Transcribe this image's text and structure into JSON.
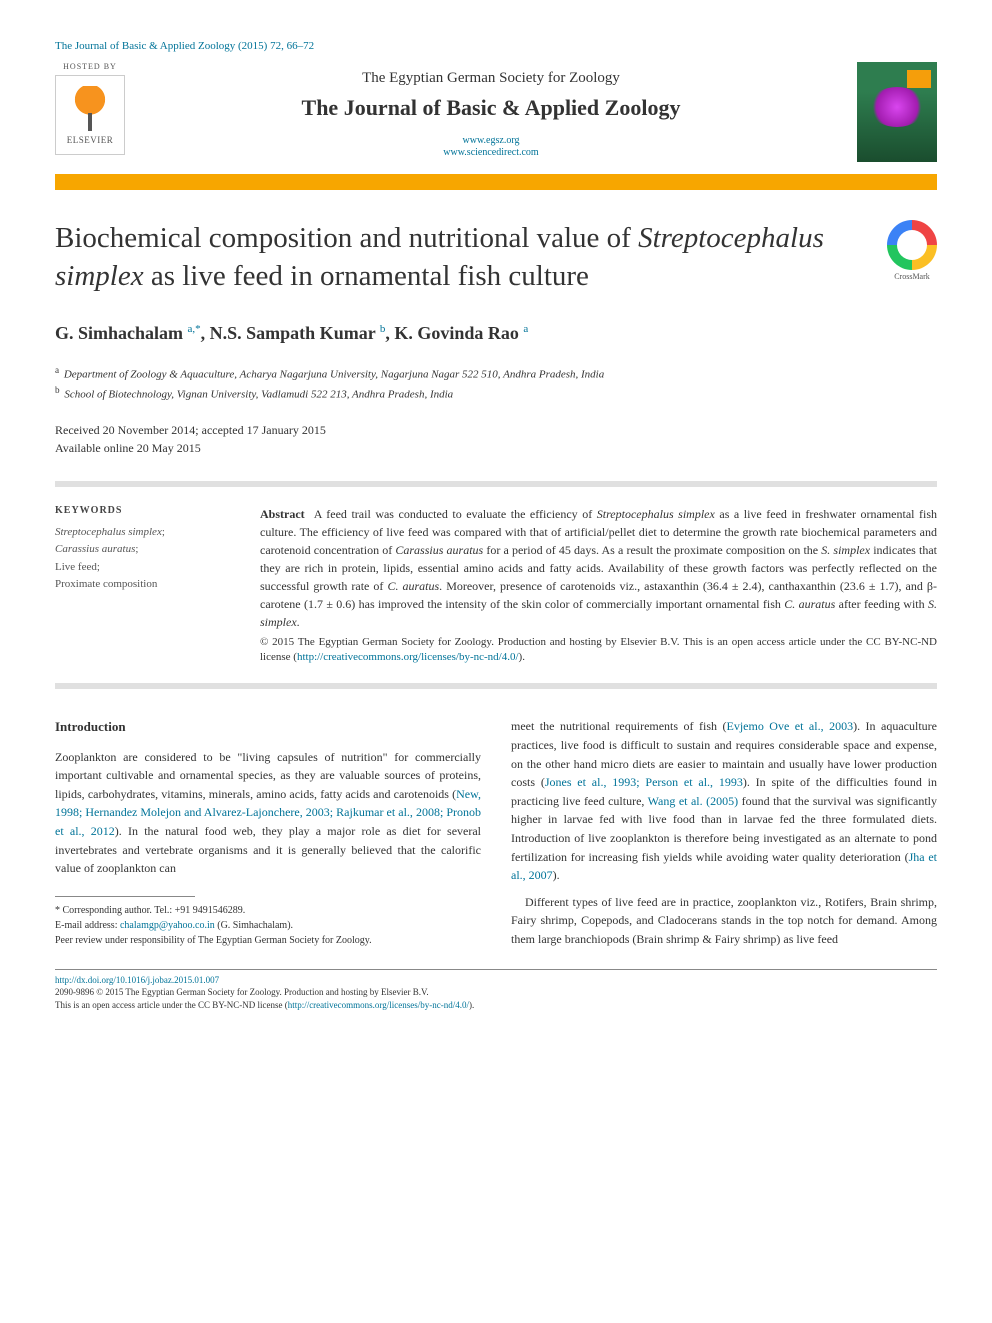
{
  "ref": "The Journal of Basic & Applied Zoology (2015) 72, 66–72",
  "hosted": "HOSTED BY",
  "elsevier": "ELSEVIER",
  "society": "The Egyptian German Society for Zoology",
  "journal": "The Journal of Basic & Applied Zoology",
  "link1": "www.egsz.org",
  "link2": "www.sciencedirect.com",
  "crossmark": "CrossMark",
  "title_pre": "Biochemical composition and nutritional value of ",
  "title_italic": "Streptocephalus simplex",
  "title_post": " as live feed in ornamental fish culture",
  "authors": {
    "a1": "G. Simhachalam",
    "a1s": "a,*",
    "a2": "N.S. Sampath Kumar",
    "a2s": "b",
    "a3": "K. Govinda Rao",
    "a3s": "a"
  },
  "aff_a": "Department of Zoology & Aquaculture, Acharya Nagarjuna University, Nagarjuna Nagar 522 510, Andhra Pradesh, India",
  "aff_b": "School of Biotechnology, Vignan University, Vadlamudi 522 213, Andhra Pradesh, India",
  "dates1": "Received 20 November 2014; accepted 17 January 2015",
  "dates2": "Available online 20 May 2015",
  "kw_head": "KEYWORDS",
  "kw1": "Streptocephalus simplex",
  "kw2": "Carassius auratus",
  "kw3": "Live feed;",
  "kw4": "Proximate composition",
  "abs_label": "Abstract",
  "abs1": "A feed trail was conducted to evaluate the efficiency of ",
  "abs1i": "Streptocephalus simplex",
  "abs1b": " as a live feed in freshwater ornamental fish culture. The efficiency of live feed was compared with that of artificial/pellet diet to determine the growth rate biochemical parameters and carotenoid concentration of ",
  "abs1c": "Carassius auratus",
  "abs1d": " for a period of 45 days. As a result the proximate composition on the ",
  "abs1e": "S. simplex",
  "abs1f": " indicates that they are rich in protein, lipids, essential amino acids and fatty acids. Availability of these growth factors was perfectly reflected on the successful growth rate of ",
  "abs1g": "C. auratus",
  "abs1h": ". Moreover, presence of carotenoids viz., astaxanthin (36.4 ± 2.4), canthaxanthin (23.6 ± 1.7), and β-carotene (1.7 ± 0.6) has improved the intensity of the skin color of commercially important ornamental fish ",
  "abs1i2": "C. auratus",
  "abs1j": " after feeding with ",
  "abs1k": "S. simplex",
  "abs1l": ".",
  "copyright": "© 2015 The Egyptian German Society for Zoology. Production and hosting by Elsevier B.V. This is an open access article under the CC BY-NC-ND license (",
  "lic_url": "http://creativecommons.org/licenses/by-nc-nd/4.0/",
  "lic_end": ").",
  "intro_head": "Introduction",
  "intro_p1a": "Zooplankton are considered to be \"living capsules of nutrition\" for commercially important cultivable and ornamental species, as they are valuable sources of proteins, lipids, carbohydrates, vitamins, minerals, amino acids, fatty acids and carotenoids (",
  "intro_c1": "New, 1998; Hernandez Molejon and Alvarez-Lajonchere, 2003; Rajkumar et al., 2008; Pronob et al., 2012",
  "intro_p1b": "). In the natural food web, they play a major role as diet for several invertebrates and vertebrate organisms and it is generally believed that the calorific value of zooplankton can",
  "col2_p1a": "meet the nutritional requirements of fish (",
  "col2_c1": "Evjemo Ove et al., 2003",
  "col2_p1b": "). In aquaculture practices, live food is difficult to sustain and requires considerable space and expense, on the other hand micro diets are easier to maintain and usually have lower production costs (",
  "col2_c2": "Jones et al., 1993; Person et al., 1993",
  "col2_p1c": "). In spite of the difficulties found in practicing live feed culture, ",
  "col2_c3": "Wang et al. (2005)",
  "col2_p1d": " found that the survival was significantly higher in larvae fed with live food than in larvae fed the three formulated diets. Introduction of live zooplankton is therefore being investigated as an alternate to pond fertilization for increasing fish yields while avoiding water quality deterioration (",
  "col2_c4": "Jha et al., 2007",
  "col2_p1e": ").",
  "col2_p2a": "Different types of live feed are in practice, zooplankton ",
  "col2_p2i": "viz.",
  "col2_p2b": ", Rotifers, Brain shrimp, Fairy shrimp, Copepods, and Cladocerans stands in the top notch for demand. Among them large branchiopods (Brain shrimp & Fairy shrimp) as live feed",
  "fn_corr": "* Corresponding author. Tel.: +91 9491546289.",
  "fn_email_label": "E-mail address: ",
  "fn_email": "chalamgp@yahoo.co.in",
  "fn_email_who": " (G. Simhachalam).",
  "fn_peer": "Peer review under responsibility of The Egyptian German Society for Zoology.",
  "doi": "http://dx.doi.org/10.1016/j.jobaz.2015.01.007",
  "issn": "2090-9896 © 2015 The Egyptian German Society for Zoology. Production and hosting by Elsevier B.V.",
  "oa": "This is an open access article under the CC BY-NC-ND license (",
  "oa_url": "http://creativecommons.org/licenses/by-nc-nd/4.0/",
  "oa_end": ")."
}
